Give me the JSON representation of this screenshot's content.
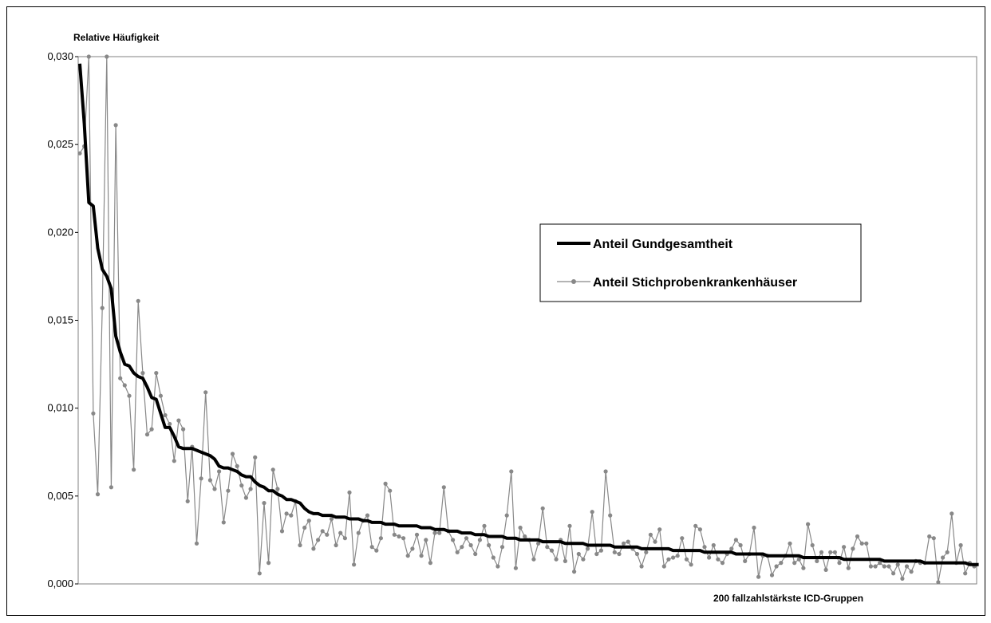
{
  "chart_data": {
    "type": "line",
    "ylabel": "Relative Häufigkeit",
    "xlabel": "200 fallzahlstärkste ICD-Gruppen",
    "ylim": [
      0,
      0.03
    ],
    "yticks": [
      "0,000",
      "0,005",
      "0,010",
      "0,015",
      "0,020",
      "0,025",
      "0,030"
    ],
    "grid": false,
    "legend_position": "right",
    "n_points": 200,
    "series": [
      {
        "name": "Anteil Gundgesamtheit",
        "color": "#000000",
        "style": "thick-line",
        "values": [
          0.0296,
          0.0262,
          0.0217,
          0.0215,
          0.0191,
          0.0179,
          0.0175,
          0.0168,
          0.0141,
          0.0132,
          0.0125,
          0.0124,
          0.012,
          0.0118,
          0.0117,
          0.0112,
          0.0106,
          0.0105,
          0.0097,
          0.0089,
          0.0089,
          0.0084,
          0.0078,
          0.0077,
          0.0077,
          0.0077,
          0.0076,
          0.0075,
          0.0074,
          0.0073,
          0.0071,
          0.0067,
          0.0066,
          0.0066,
          0.0065,
          0.0064,
          0.0062,
          0.0061,
          0.0061,
          0.0058,
          0.0056,
          0.0055,
          0.0053,
          0.0053,
          0.0051,
          0.005,
          0.0048,
          0.0048,
          0.0047,
          0.0046,
          0.0043,
          0.0041,
          0.004,
          0.004,
          0.0039,
          0.0039,
          0.0039,
          0.0038,
          0.0038,
          0.0038,
          0.0037,
          0.0037,
          0.0037,
          0.0036,
          0.0036,
          0.0035,
          0.0035,
          0.0035,
          0.0034,
          0.0034,
          0.0034,
          0.0033,
          0.0033,
          0.0033,
          0.0033,
          0.0033,
          0.0032,
          0.0032,
          0.0032,
          0.0031,
          0.0031,
          0.0031,
          0.003,
          0.003,
          0.003,
          0.0029,
          0.0029,
          0.0029,
          0.0028,
          0.0028,
          0.0028,
          0.0027,
          0.0027,
          0.0027,
          0.0027,
          0.0026,
          0.0026,
          0.0026,
          0.0025,
          0.0025,
          0.0025,
          0.0025,
          0.0025,
          0.0024,
          0.0024,
          0.0024,
          0.0024,
          0.0024,
          0.0023,
          0.0023,
          0.0023,
          0.0023,
          0.0023,
          0.0022,
          0.0022,
          0.0022,
          0.0022,
          0.0022,
          0.0022,
          0.0021,
          0.0021,
          0.0021,
          0.0021,
          0.0021,
          0.0021,
          0.002,
          0.002,
          0.002,
          0.002,
          0.002,
          0.002,
          0.002,
          0.0019,
          0.0019,
          0.0019,
          0.0019,
          0.0019,
          0.0019,
          0.0019,
          0.0018,
          0.0018,
          0.0018,
          0.0018,
          0.0018,
          0.0018,
          0.0018,
          0.0017,
          0.0017,
          0.0017,
          0.0017,
          0.0017,
          0.0017,
          0.0017,
          0.0016,
          0.0016,
          0.0016,
          0.0016,
          0.0016,
          0.0016,
          0.0016,
          0.0016,
          0.0015,
          0.0015,
          0.0015,
          0.0015,
          0.0015,
          0.0015,
          0.0015,
          0.0015,
          0.0015,
          0.0014,
          0.0014,
          0.0014,
          0.0014,
          0.0014,
          0.0014,
          0.0014,
          0.0014,
          0.0014,
          0.0013,
          0.0013,
          0.0013,
          0.0013,
          0.0013,
          0.0013,
          0.0013,
          0.0013,
          0.0013,
          0.0012,
          0.0012,
          0.0012,
          0.0012,
          0.0012,
          0.0012,
          0.0012,
          0.0012,
          0.0012,
          0.0012,
          0.0011,
          0.0011,
          0.0011
        ]
      },
      {
        "name": "Anteil Stichprobenkrankenhäuser",
        "color": "#888888",
        "style": "line-with-markers",
        "values": [
          0.0245,
          0.0249,
          0.03,
          0.0097,
          0.0051,
          0.0157,
          0.03,
          0.0055,
          0.0261,
          0.0117,
          0.0113,
          0.0107,
          0.0065,
          0.0161,
          0.012,
          0.0085,
          0.0088,
          0.012,
          0.0107,
          0.0096,
          0.0091,
          0.007,
          0.0093,
          0.0088,
          0.0047,
          0.0078,
          0.0023,
          0.006,
          0.0109,
          0.0059,
          0.0054,
          0.0064,
          0.0035,
          0.0053,
          0.0074,
          0.0067,
          0.0056,
          0.0049,
          0.0054,
          0.0072,
          0.0006,
          0.0046,
          0.0012,
          0.0065,
          0.0054,
          0.003,
          0.004,
          0.0039,
          0.0047,
          0.0022,
          0.0032,
          0.0036,
          0.002,
          0.0025,
          0.003,
          0.0028,
          0.0037,
          0.0022,
          0.0029,
          0.0026,
          0.0052,
          0.0011,
          0.0029,
          0.0036,
          0.0039,
          0.0021,
          0.0019,
          0.0026,
          0.0057,
          0.0053,
          0.0028,
          0.0027,
          0.0026,
          0.0016,
          0.002,
          0.0028,
          0.0016,
          0.0025,
          0.0012,
          0.0029,
          0.0029,
          0.0055,
          0.003,
          0.0025,
          0.0018,
          0.0021,
          0.0026,
          0.0022,
          0.0017,
          0.0025,
          0.0033,
          0.0022,
          0.0015,
          0.001,
          0.0021,
          0.0039,
          0.0064,
          0.0009,
          0.0032,
          0.0027,
          0.0025,
          0.0014,
          0.0023,
          0.0043,
          0.0021,
          0.0019,
          0.0014,
          0.0025,
          0.0013,
          0.0033,
          0.0007,
          0.0017,
          0.0014,
          0.002,
          0.0041,
          0.0017,
          0.0019,
          0.0064,
          0.0039,
          0.0018,
          0.0017,
          0.0023,
          0.0024,
          0.002,
          0.0017,
          0.001,
          0.0018,
          0.0028,
          0.0024,
          0.0031,
          0.001,
          0.0014,
          0.0015,
          0.0016,
          0.0026,
          0.0014,
          0.0011,
          0.0033,
          0.0031,
          0.0021,
          0.0015,
          0.0022,
          0.0014,
          0.0012,
          0.0017,
          0.002,
          0.0025,
          0.0022,
          0.0013,
          0.0017,
          0.0032,
          0.0004,
          0.0016,
          0.0016,
          0.0005,
          0.001,
          0.0012,
          0.0016,
          0.0023,
          0.0012,
          0.0014,
          0.0009,
          0.0034,
          0.0022,
          0.0013,
          0.0018,
          0.0008,
          0.0018,
          0.0018,
          0.0012,
          0.0021,
          0.0009,
          0.002,
          0.0027,
          0.0023,
          0.0023,
          0.001,
          0.001,
          0.0012,
          0.001,
          0.001,
          0.0006,
          0.0011,
          0.0003,
          0.001,
          0.0007,
          0.0013,
          0.0012,
          0.0012,
          0.0027,
          0.0026,
          0.0001,
          0.0015,
          0.0018,
          0.004,
          0.0012,
          0.0022,
          0.0006,
          0.0012,
          0.001
        ]
      }
    ]
  }
}
